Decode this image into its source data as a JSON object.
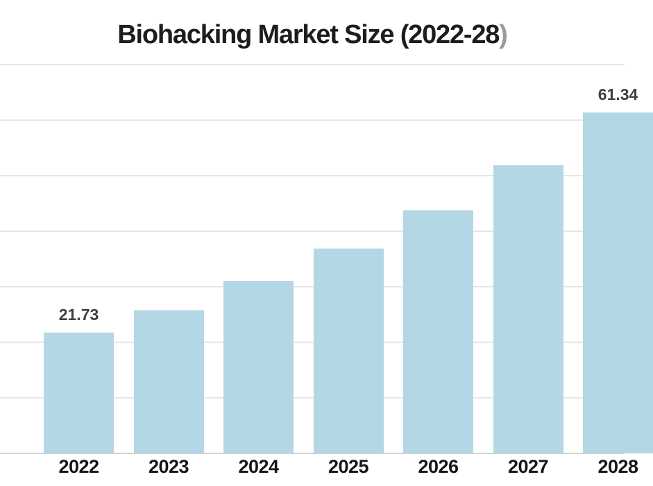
{
  "header": {
    "title_main": "Biohacking Market Size (2022-28",
    "title_suffix": ")"
  },
  "chart_data": {
    "type": "bar",
    "title": "Biohacking Market Size (2022-28)",
    "categories": [
      "2022",
      "2023",
      "2024",
      "2025",
      "2026",
      "2027",
      "2028"
    ],
    "values": [
      21.73,
      25.8,
      31.0,
      36.9,
      43.75,
      51.9,
      61.34
    ],
    "data_labels": [
      "21.73",
      null,
      null,
      null,
      null,
      null,
      "61.34"
    ],
    "xlabel": "",
    "ylabel": "",
    "ylim": [
      0,
      70
    ],
    "gridline_step": 10,
    "grid": true,
    "legend": "none",
    "y_axis_tick_labels_visible": false,
    "notes_visible_labels": [
      "21.73",
      "61.34"
    ]
  },
  "colors": {
    "background": "#ffffff",
    "bar": "#b3d7e5",
    "title": "#1d1d1d",
    "title_suffix": "#9a9a9a",
    "value_label": "#404040",
    "axis_label": "#161616",
    "gridline": "#e6e6e6",
    "axis_line": "#d2d2d2"
  }
}
